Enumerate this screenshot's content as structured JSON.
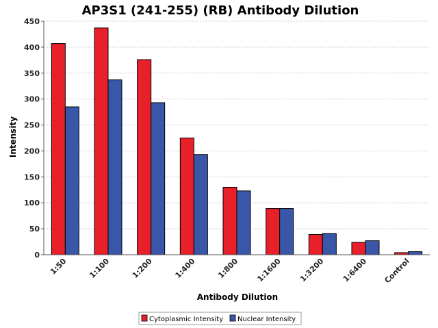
{
  "chart_data": {
    "type": "bar",
    "title": "AP3S1 (241-255) (RB) Antibody Dilution",
    "xlabel": "Antibody Dilution",
    "ylabel": "Intensity",
    "categories": [
      "1:50",
      "1:100",
      "1:200",
      "1:400",
      "1:800",
      "1:1600",
      "1:3200",
      "1:6400",
      "Control"
    ],
    "series": [
      {
        "name": "Cytoplasmic Intensity",
        "color": "#e8202a",
        "values": [
          407,
          437,
          376,
          225,
          130,
          89,
          39,
          24,
          4
        ]
      },
      {
        "name": "Nuclear Intensity",
        "color": "#3a56a8",
        "values": [
          285,
          337,
          293,
          193,
          123,
          89,
          41,
          27,
          6
        ]
      }
    ],
    "ylim": [
      0,
      450
    ],
    "yticks": [
      0,
      50,
      100,
      150,
      200,
      250,
      300,
      350,
      400,
      450
    ],
    "grid": true,
    "legend_position": "bottom-center"
  }
}
